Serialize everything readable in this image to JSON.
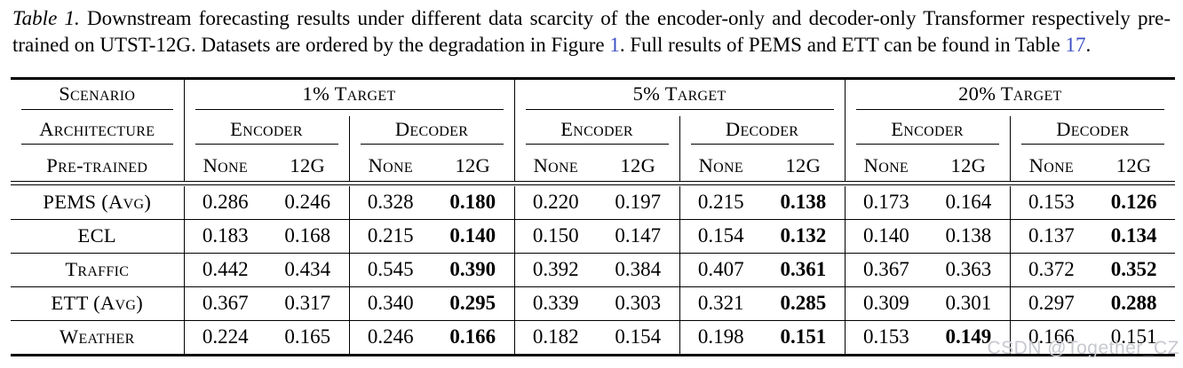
{
  "caption": {
    "label": "Table 1.",
    "text_1": " Downstream forecasting results under different data scarcity of the encoder-only and decoder-only Transformer respectively pre-trained on UTST-12G. Datasets are ordered by the degradation in Figure ",
    "figure_link": "1",
    "text_2": ". Full results of PEMS and ETT can be found in Table ",
    "table_link": "17",
    "text_3": "."
  },
  "table": {
    "row1": {
      "scenario": "Scenario",
      "targets": [
        "1% Target",
        "5% Target",
        "20% Target"
      ]
    },
    "row2": {
      "architecture": "Architecture",
      "arch_cols": [
        "Encoder",
        "Decoder",
        "Encoder",
        "Decoder",
        "Encoder",
        "Decoder"
      ]
    },
    "row3": {
      "pretrained": "Pre-trained",
      "subcols": [
        "None",
        "12G",
        "None",
        "12G",
        "None",
        "12G",
        "None",
        "12G",
        "None",
        "12G",
        "None",
        "12G"
      ]
    },
    "rows": [
      {
        "label": "PEMS (Avg)",
        "values": [
          "0.286",
          "0.246",
          "0.328",
          "0.180",
          "0.220",
          "0.197",
          "0.215",
          "0.138",
          "0.173",
          "0.164",
          "0.153",
          "0.126"
        ],
        "bold": [
          3,
          7,
          11
        ]
      },
      {
        "label": "ECL",
        "values": [
          "0.183",
          "0.168",
          "0.215",
          "0.140",
          "0.150",
          "0.147",
          "0.154",
          "0.132",
          "0.140",
          "0.138",
          "0.137",
          "0.134"
        ],
        "bold": [
          3,
          7,
          11
        ]
      },
      {
        "label": "Traffic",
        "values": [
          "0.442",
          "0.434",
          "0.545",
          "0.390",
          "0.392",
          "0.384",
          "0.407",
          "0.361",
          "0.367",
          "0.363",
          "0.372",
          "0.352"
        ],
        "bold": [
          3,
          7,
          11
        ]
      },
      {
        "label": "ETT (Avg)",
        "values": [
          "0.367",
          "0.317",
          "0.340",
          "0.295",
          "0.339",
          "0.303",
          "0.321",
          "0.285",
          "0.309",
          "0.301",
          "0.297",
          "0.288"
        ],
        "bold": [
          3,
          7,
          11
        ]
      },
      {
        "label": "Weather",
        "values": [
          "0.224",
          "0.165",
          "0.246",
          "0.166",
          "0.182",
          "0.154",
          "0.198",
          "0.151",
          "0.153",
          "0.149",
          "0.166",
          "0.151"
        ],
        "bold": [
          3,
          7,
          9
        ]
      }
    ]
  },
  "watermark": {
    "text": "CSDN @Together_CZ"
  },
  "colors": {
    "link_blue": "#3b4fc4",
    "text": "#000000",
    "watermark_gray": "#c7c9cf"
  }
}
